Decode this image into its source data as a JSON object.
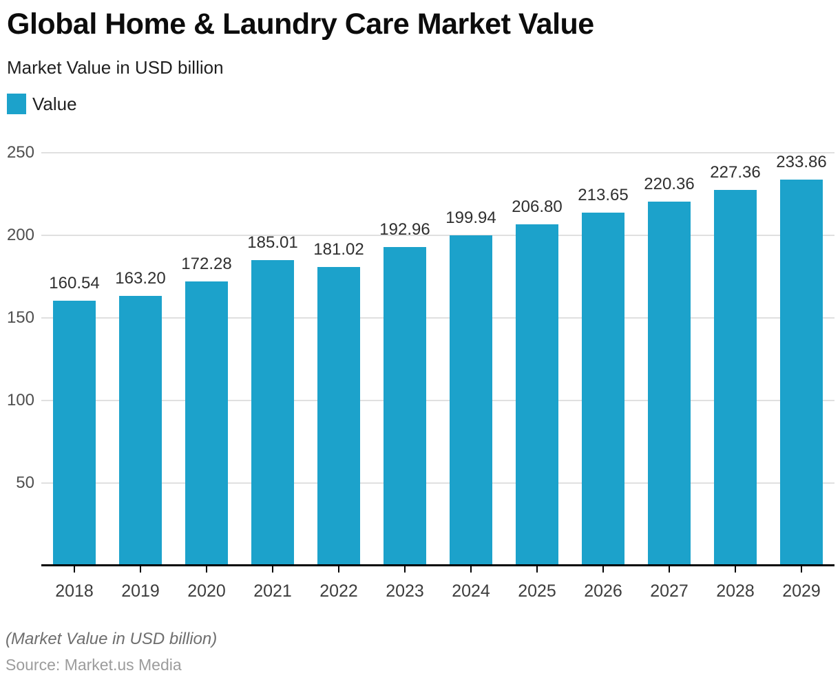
{
  "header": {
    "title": "Global Home & Laundry Care Market Value",
    "subtitle": "Market Value in USD billion"
  },
  "legend": {
    "items": [
      {
        "label": "Value",
        "color": "#1CA2CB"
      }
    ]
  },
  "footer": {
    "footnote": "(Market Value in USD billion)",
    "source": "Source: Market.us Media"
  },
  "colors": {
    "bar": "#1CA2CB",
    "gridline": "#e0e0e0",
    "axis_line": "#000000",
    "x_label": "#3d3d3d",
    "y_label": "#4f4f4f",
    "value_label": "#2f2f2f"
  },
  "chart_data": {
    "type": "bar",
    "title": "Global Home & Laundry Care Market Value",
    "subtitle": "Market Value in USD billion",
    "categories": [
      "2018",
      "2019",
      "2020",
      "2021",
      "2022",
      "2023",
      "2024",
      "2025",
      "2026",
      "2027",
      "2028",
      "2029"
    ],
    "series": [
      {
        "name": "Value",
        "color": "#1CA2CB",
        "values": [
          160.54,
          163.2,
          172.28,
          185.01,
          181.02,
          192.96,
          199.94,
          206.8,
          213.65,
          220.36,
          227.36,
          233.86
        ]
      }
    ],
    "value_label_decimals": 2,
    "xlabel": "",
    "ylabel": "Market Value in USD billion",
    "ylim": [
      0,
      250
    ],
    "yticks": [
      50,
      100,
      150,
      200,
      250
    ],
    "grid": true,
    "legend_position": "top-left",
    "value_labels": true
  }
}
